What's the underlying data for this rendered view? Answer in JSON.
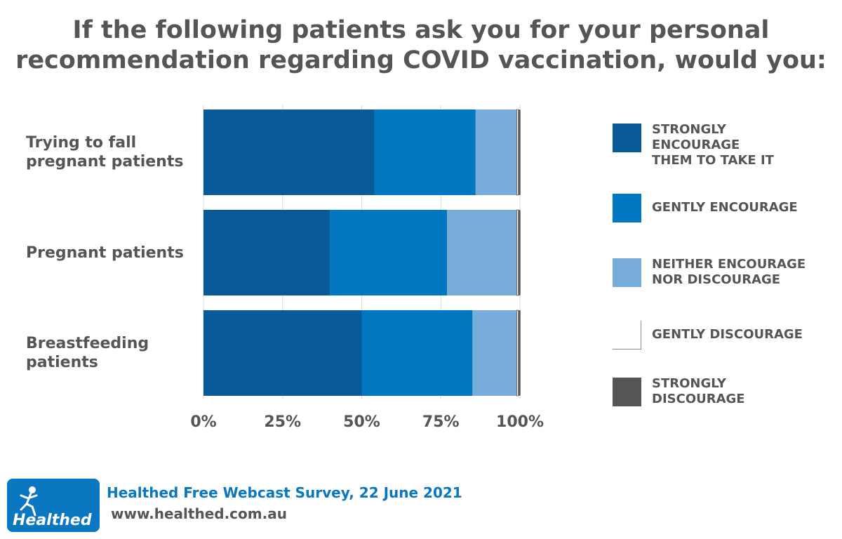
{
  "title_line1": "If the following patients ask you for your personal",
  "title_line2": "recommendation regarding COVID vaccination, would you:",
  "chart_data": {
    "type": "bar",
    "orientation": "horizontal",
    "stacked": true,
    "categories": [
      "Trying to fall\npregnant patients",
      "Pregnant patients",
      "Breastfeeding\npatients"
    ],
    "series": [
      {
        "name": "STRONGLY\nENCOURAGE\nTHEM TO TAKE IT",
        "color": "#085a98",
        "values": [
          54,
          40,
          50
        ]
      },
      {
        "name": "GENTLY ENCOURAGE",
        "color": "#0177c1",
        "values": [
          32,
          37,
          35
        ]
      },
      {
        "name": "NEITHER ENCOURAGE\nNOR DISCOURAGE",
        "color": "#77acdb",
        "values": [
          13,
          22,
          14
        ]
      },
      {
        "name": "GENTLY DISCOURAGE",
        "color": "#ffffff",
        "values": [
          0.5,
          0.5,
          0.5
        ]
      },
      {
        "name": "STRONGLY\nDISCOURAGE",
        "color": "#555555",
        "values": [
          0.5,
          0.5,
          0.5
        ]
      }
    ],
    "x_ticks": [
      "0%",
      "25%",
      "50%",
      "75%",
      "100%"
    ],
    "xlim": [
      0,
      100
    ],
    "grid": true,
    "legend_position": "right"
  },
  "footer": {
    "logo_text": "Healthed",
    "source": "Healthed Free Webcast Survey, 22 June 2021",
    "url": "www.healthed.com.au"
  }
}
